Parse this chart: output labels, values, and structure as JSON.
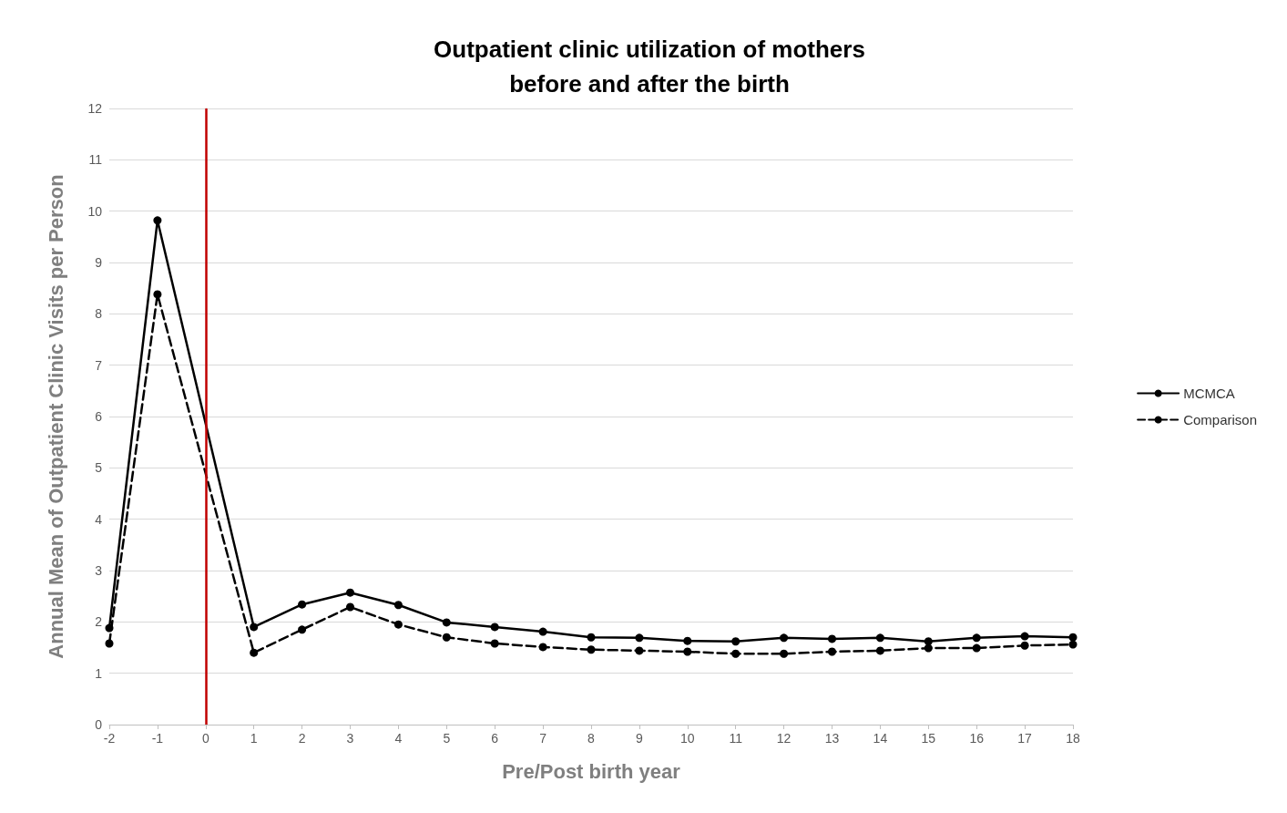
{
  "chart_data": {
    "type": "line",
    "title": "Outpatient clinic utilization of mothers\nbefore and after the birth",
    "xlabel": "Pre/Post birth year",
    "ylabel": "Annual Mean of Outpatient Clinic Visits per Person",
    "x": [
      -2,
      -1,
      1,
      2,
      3,
      4,
      5,
      6,
      7,
      8,
      9,
      10,
      11,
      12,
      13,
      14,
      15,
      16,
      17,
      18
    ],
    "series": [
      {
        "name": "MCMCA",
        "color": "#000000",
        "line_style": "solid",
        "values": [
          1.88,
          9.82,
          1.9,
          2.34,
          2.57,
          2.33,
          1.99,
          1.9,
          1.81,
          1.7,
          1.69,
          1.63,
          1.62,
          1.69,
          1.67,
          1.69,
          1.62,
          1.69,
          1.72,
          1.7
        ]
      },
      {
        "name": "Comparison",
        "color": "#000000",
        "line_style": "dashed",
        "values": [
          1.58,
          8.38,
          1.4,
          1.85,
          2.29,
          1.95,
          1.7,
          1.58,
          1.51,
          1.46,
          1.44,
          1.42,
          1.38,
          1.38,
          1.42,
          1.44,
          1.49,
          1.49,
          1.54,
          1.56
        ]
      }
    ],
    "xlim": [
      -2,
      18
    ],
    "xticks": [
      -2,
      -1,
      0,
      1,
      2,
      3,
      4,
      5,
      6,
      7,
      8,
      9,
      10,
      11,
      12,
      13,
      14,
      15,
      16,
      17,
      18
    ],
    "ylim": [
      0,
      12
    ],
    "yticks": [
      0,
      1,
      2,
      3,
      4,
      5,
      6,
      7,
      8,
      9,
      10,
      11,
      12
    ],
    "ref_lines": [
      {
        "axis": "x",
        "value": 0,
        "label": null,
        "color": "#c00000"
      }
    ],
    "grid": "y",
    "legend": "right",
    "marker": "circle"
  }
}
